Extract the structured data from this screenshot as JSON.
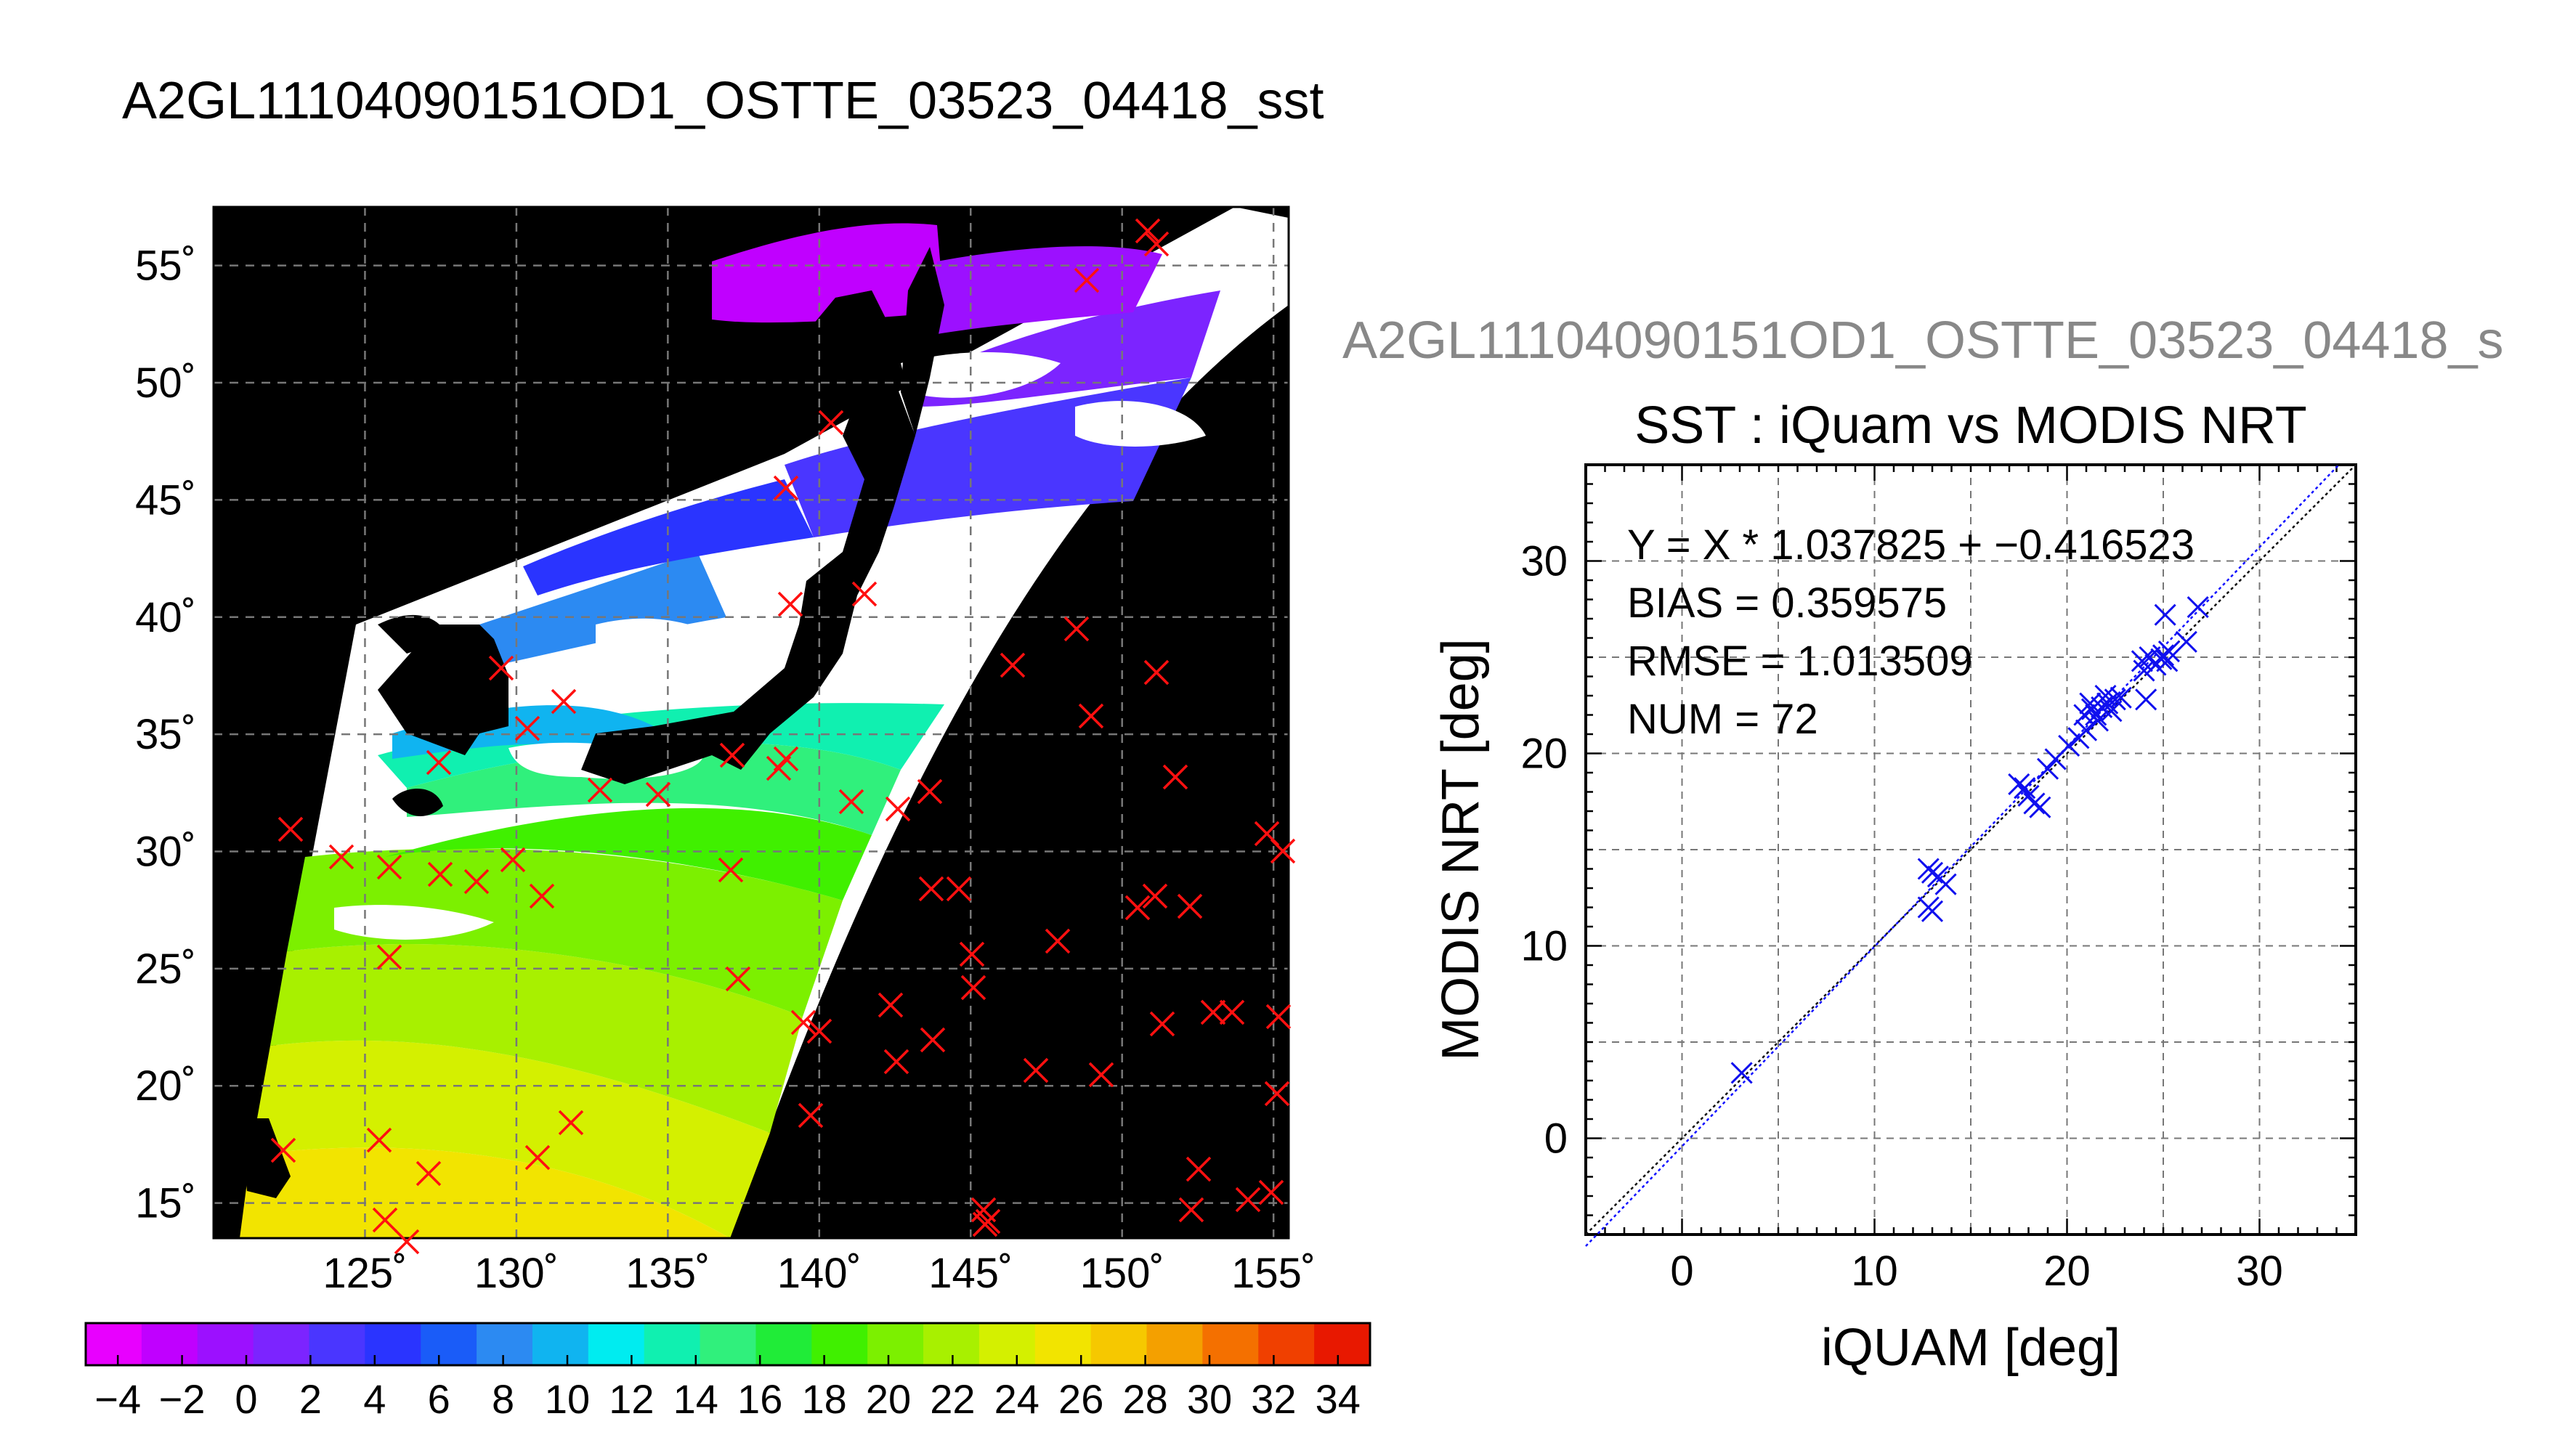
{
  "page": {
    "main_title": "A2GL11104090151OD1_OSTTE_03523_04418_sst"
  },
  "map": {
    "lat_labels": [
      "55˚",
      "50˚",
      "45˚",
      "40˚",
      "35˚",
      "30˚",
      "25˚",
      "20˚",
      "15˚"
    ],
    "lat_values": [
      55,
      50,
      45,
      40,
      35,
      30,
      25,
      20,
      15
    ],
    "lon_labels": [
      "125˚",
      "130˚",
      "135˚",
      "140˚",
      "145˚",
      "150˚",
      "155˚"
    ],
    "lon_values": [
      125,
      130,
      135,
      140,
      145,
      150,
      155
    ],
    "lon_range": [
      120,
      155.5
    ],
    "lat_range": [
      13.5,
      57.5
    ]
  },
  "colorbar": {
    "tick_labels": [
      "−4",
      "−2",
      "0",
      "2",
      "4",
      "6",
      "8",
      "10",
      "12",
      "14",
      "16",
      "18",
      "20",
      "22",
      "24",
      "26",
      "28",
      "30",
      "32",
      "34"
    ],
    "range": [
      -5,
      35
    ],
    "colors": [
      "#e800ff",
      "#c000ff",
      "#9c10ff",
      "#7c24ff",
      "#4a36ff",
      "#2a34ff",
      "#1a5cf8",
      "#2c8af2",
      "#10b4f0",
      "#00ecf0",
      "#10f0b0",
      "#30f07c",
      "#20ec38",
      "#40f000",
      "#7cf000",
      "#a8f000",
      "#d4f000",
      "#f2e400",
      "#f6c800",
      "#f4a000",
      "#f47000",
      "#f04000",
      "#e81800"
    ]
  },
  "scatter_subtitle": "A2GL11104090151OD1_OSTTE_03523_04418_s",
  "chart_data": {
    "type": "scatter",
    "title": "SST : iQuam vs MODIS NRT",
    "xlabel": "iQUAM [deg]",
    "ylabel": "MODIS NRT [deg]",
    "xlim": [
      -5,
      35
    ],
    "ylim": [
      -5,
      35
    ],
    "xticks": [
      0,
      10,
      20,
      30
    ],
    "yticks": [
      0,
      10,
      20,
      30
    ],
    "grid": true,
    "stats": {
      "fit": "Y = X * 1.037825 + −0.416523",
      "bias": "BIAS = 0.359575",
      "rmse": "RMSE = 1.013509",
      "num": "NUM = 72"
    },
    "fit_line": {
      "slope": 1.037825,
      "intercept": -0.416523
    },
    "points": [
      [
        3.1,
        3.4
      ],
      [
        12.8,
        14.0
      ],
      [
        13.0,
        13.8
      ],
      [
        12.8,
        12.0
      ],
      [
        13.0,
        11.8
      ],
      [
        13.3,
        13.6
      ],
      [
        13.7,
        13.2
      ],
      [
        17.5,
        18.4
      ],
      [
        17.8,
        18.2
      ],
      [
        18.0,
        17.8
      ],
      [
        18.3,
        17.4
      ],
      [
        18.6,
        17.2
      ],
      [
        19.0,
        19.2
      ],
      [
        19.4,
        19.7
      ],
      [
        20.1,
        20.4
      ],
      [
        20.6,
        20.8
      ],
      [
        20.9,
        22.0
      ],
      [
        21.0,
        21.2
      ],
      [
        21.2,
        22.6
      ],
      [
        21.3,
        22.3
      ],
      [
        21.5,
        22.0
      ],
      [
        21.6,
        21.7
      ],
      [
        21.8,
        22.4
      ],
      [
        22.0,
        23.0
      ],
      [
        22.1,
        22.6
      ],
      [
        22.3,
        22.2
      ],
      [
        22.5,
        22.8
      ],
      [
        22.8,
        22.9
      ],
      [
        23.9,
        24.8
      ],
      [
        24.0,
        24.3
      ],
      [
        24.1,
        22.8
      ],
      [
        24.3,
        25.0
      ],
      [
        24.6,
        24.6
      ],
      [
        24.9,
        24.9
      ],
      [
        25.0,
        25.1
      ],
      [
        25.1,
        27.2
      ],
      [
        25.2,
        24.8
      ],
      [
        25.3,
        25.3
      ],
      [
        26.2,
        25.8
      ],
      [
        26.8,
        27.6
      ]
    ]
  }
}
